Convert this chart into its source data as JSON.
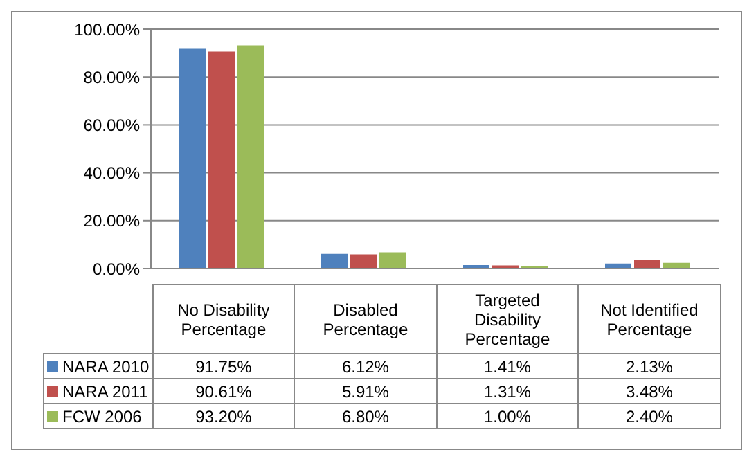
{
  "chart_data": {
    "type": "bar",
    "categories": [
      "No Disability Percentage",
      "Disabled Percentage",
      "Targeted Disability Percentage",
      "Not Identified Percentage"
    ],
    "series": [
      {
        "name": "NARA 2010",
        "color": "#4f81bd",
        "values": [
          91.75,
          6.12,
          1.41,
          2.13
        ],
        "value_labels": [
          "91.75%",
          "6.12%",
          "1.41%",
          "2.13%"
        ]
      },
      {
        "name": "NARA 2011",
        "color": "#c0504d",
        "values": [
          90.61,
          5.91,
          1.31,
          3.48
        ],
        "value_labels": [
          "90.61%",
          "5.91%",
          "1.31%",
          "3.48%"
        ]
      },
      {
        "name": "FCW 2006",
        "color": "#9bbb59",
        "values": [
          93.2,
          6.8,
          1.0,
          2.4
        ],
        "value_labels": [
          "93.20%",
          "6.80%",
          "1.00%",
          "2.40%"
        ]
      }
    ],
    "ylim": [
      0,
      100
    ],
    "yticks": [
      {
        "value": 0,
        "label": "0.00%"
      },
      {
        "value": 20,
        "label": "20.00%"
      },
      {
        "value": 40,
        "label": "40.00%"
      },
      {
        "value": 60,
        "label": "60.00%"
      },
      {
        "value": 80,
        "label": "80.00%"
      },
      {
        "value": 100,
        "label": "100.00%"
      }
    ],
    "grid": "y",
    "legend": "bottom"
  }
}
